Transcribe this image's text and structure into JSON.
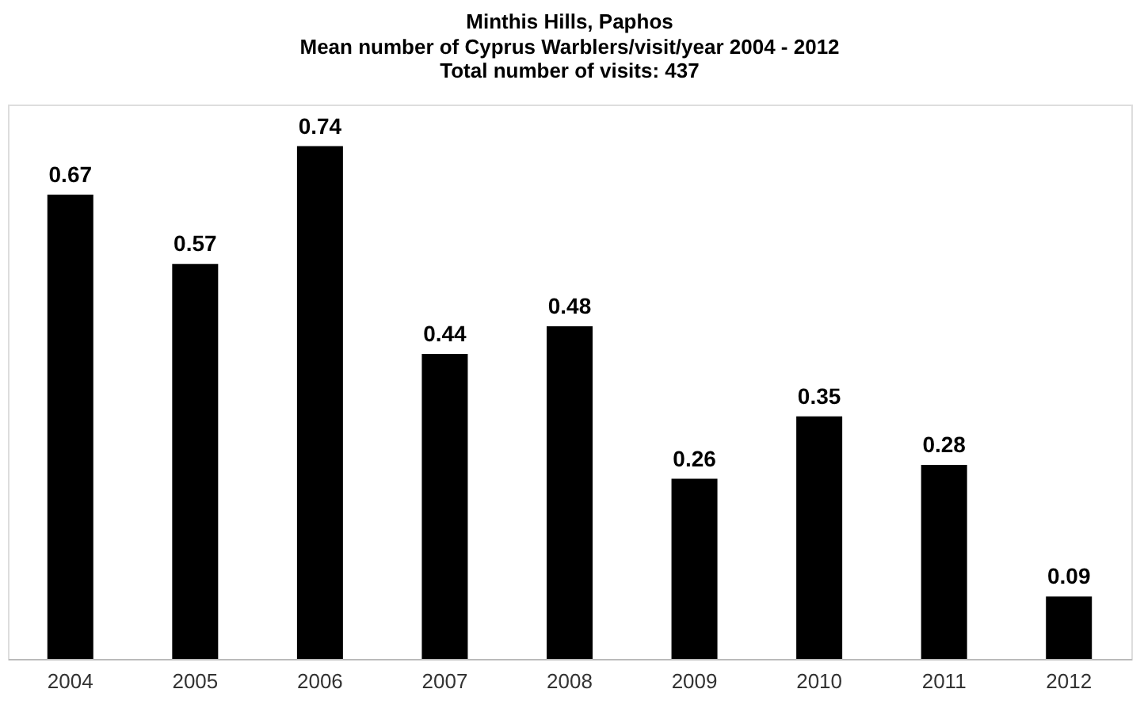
{
  "chart_data": {
    "type": "bar",
    "title": "Minthis Hills, Paphos",
    "subtitle": "Mean number of Cyprus Warblers/visit/year 2004 - 2012\nTotal number of visits: 437",
    "categories": [
      "2004",
      "2005",
      "2006",
      "2007",
      "2008",
      "2009",
      "2010",
      "2011",
      "2012"
    ],
    "values": [
      0.67,
      0.57,
      0.74,
      0.44,
      0.48,
      0.26,
      0.35,
      0.28,
      0.09
    ],
    "color": "#000000",
    "data_labels": true,
    "grid": false,
    "tick_labels": "x"
  }
}
